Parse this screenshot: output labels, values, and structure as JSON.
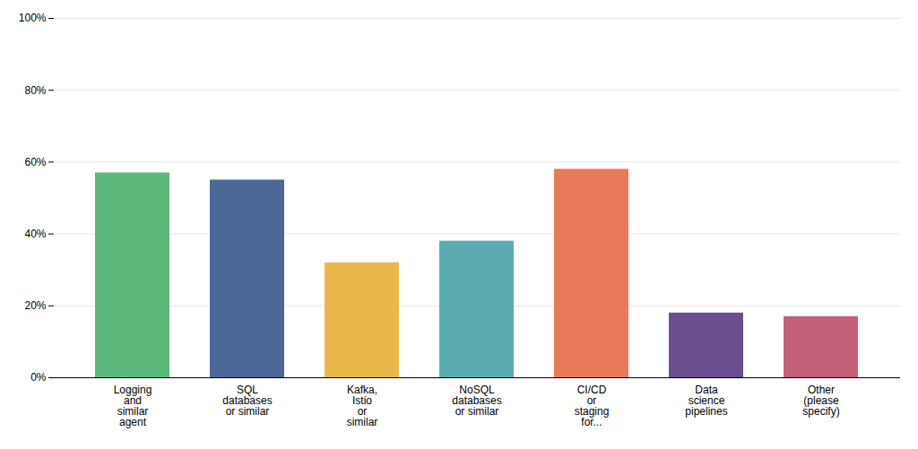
{
  "chart_data": {
    "type": "bar",
    "categories": [
      "Logging\nand\nsimilar\nagent",
      "SQL\ndatabases\nor similar",
      "Kafka,\nIstio\nor\nsimilar",
      "NoSQL\ndatabases\nor similar",
      "CI/CD\nor\nstaging\nfor...",
      "Data\nscience\npipelines",
      "Other\n(please\nspecify)"
    ],
    "values": [
      57,
      55,
      32,
      38,
      58,
      18,
      17
    ],
    "colors": [
      "#5cb87a",
      "#4c6899",
      "#e8b84b",
      "#5aacb0",
      "#e8795a",
      "#6b4e8c",
      "#c4607a"
    ],
    "ylim": [
      0,
      100
    ],
    "yticks": [
      {
        "value": 0,
        "label": "0%"
      },
      {
        "value": 20,
        "label": "20%"
      },
      {
        "value": 40,
        "label": "40%"
      },
      {
        "value": 60,
        "label": "60%"
      },
      {
        "value": 80,
        "label": "80%"
      },
      {
        "value": 100,
        "label": "100%"
      }
    ],
    "grid": true
  }
}
